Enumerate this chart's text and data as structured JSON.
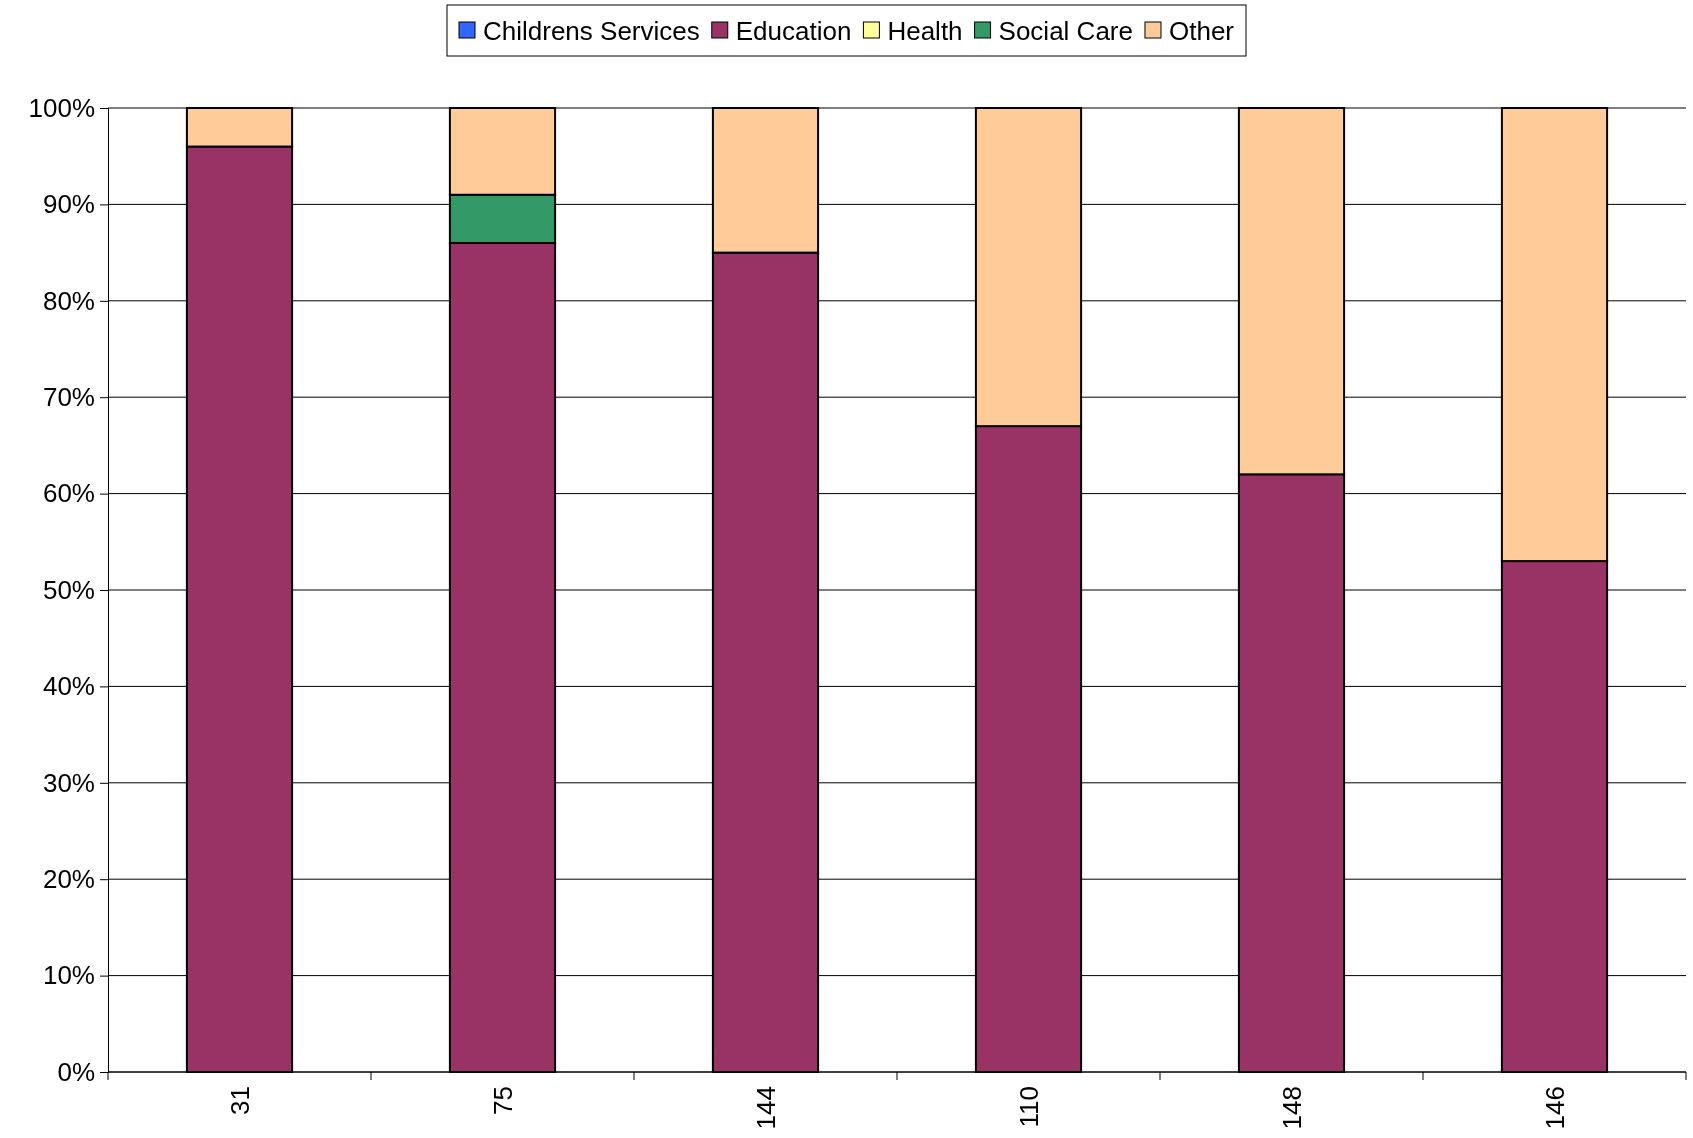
{
  "chart_data": {
    "type": "bar",
    "stacked": true,
    "categories": [
      "31",
      "75",
      "144",
      "110",
      "148",
      "146"
    ],
    "series": [
      {
        "name": "Childrens Services",
        "color": "#3366ff",
        "values": [
          0,
          0,
          0,
          0,
          0,
          0
        ]
      },
      {
        "name": "Education",
        "color": "#993366",
        "values": [
          96,
          86,
          85,
          67,
          62,
          53
        ]
      },
      {
        "name": "Health",
        "color": "#ffff99",
        "values": [
          0,
          0,
          0,
          0,
          0,
          0
        ]
      },
      {
        "name": "Social Care",
        "color": "#339966",
        "values": [
          0,
          5,
          0,
          0,
          0,
          0
        ]
      },
      {
        "name": "Other",
        "color": "#ffcc99",
        "values": [
          4,
          9,
          15,
          33,
          38,
          47
        ]
      }
    ],
    "ylim": [
      0,
      100
    ],
    "yticks": [
      {
        "value": 0,
        "label": "0%"
      },
      {
        "value": 10,
        "label": "10%"
      },
      {
        "value": 20,
        "label": "20%"
      },
      {
        "value": 30,
        "label": "30%"
      },
      {
        "value": 40,
        "label": "40%"
      },
      {
        "value": 50,
        "label": "50%"
      },
      {
        "value": 60,
        "label": "60%"
      },
      {
        "value": 70,
        "label": "70%"
      },
      {
        "value": 80,
        "label": "80%"
      },
      {
        "value": 90,
        "label": "90%"
      },
      {
        "value": 100,
        "label": "100%"
      }
    ],
    "grid": "y",
    "legend": "top"
  }
}
